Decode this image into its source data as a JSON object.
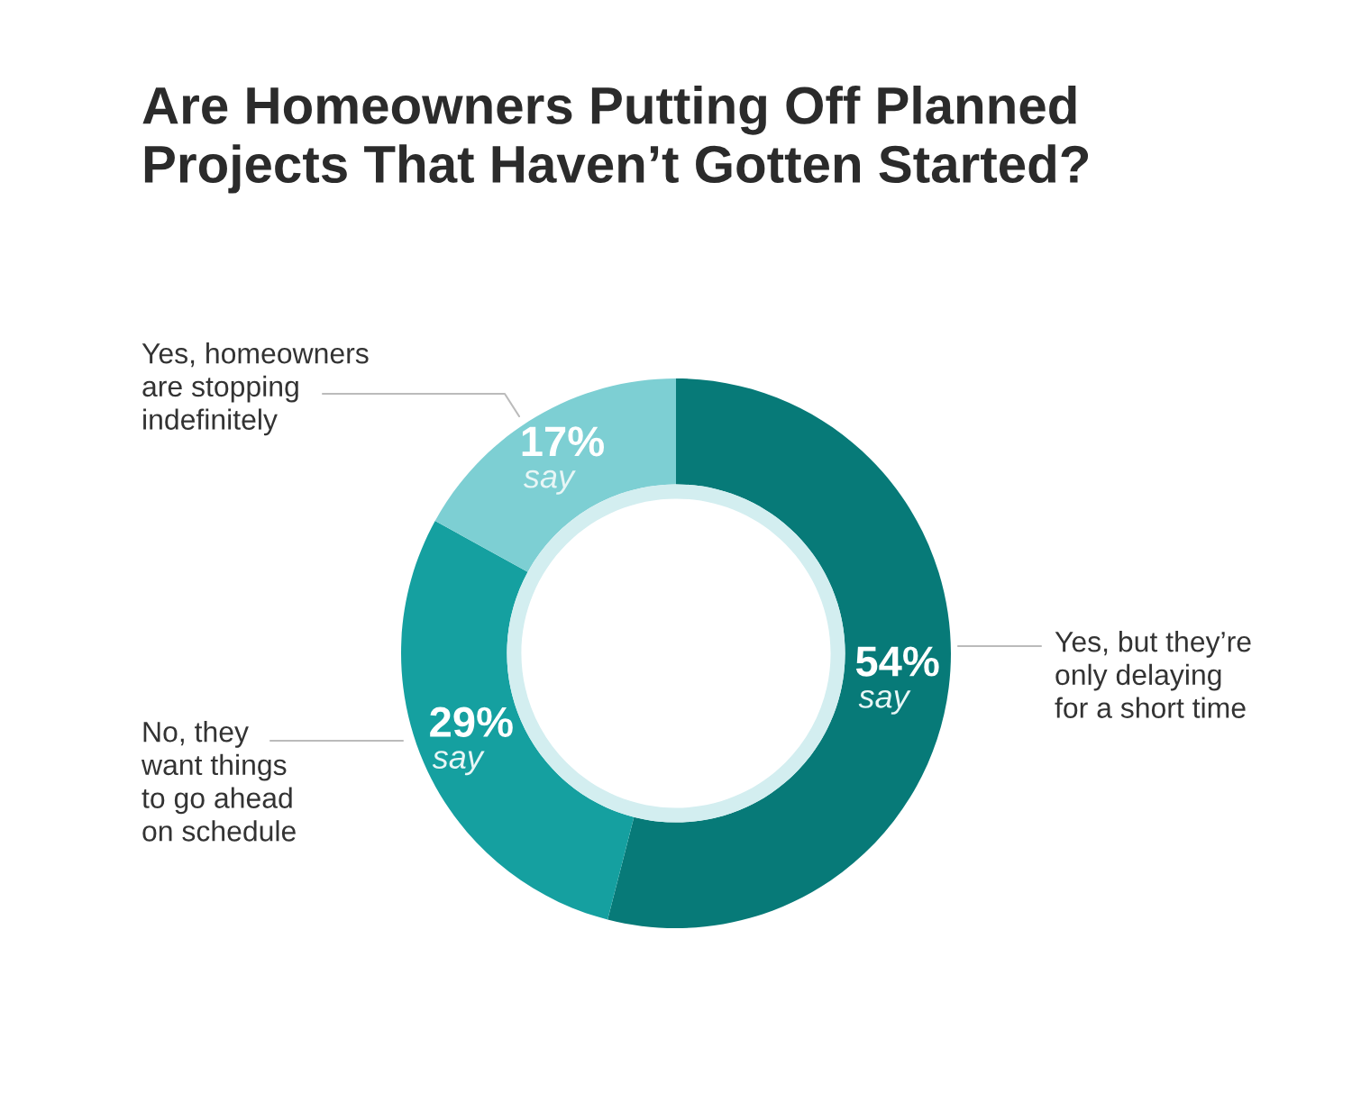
{
  "chart_data": {
    "type": "donut",
    "title": "Are Homeowners Putting Off Planned\nProjects That Haven’t Gotten Started?",
    "categories": [
      "Yes, but they’re\nonly delaying\nfor a short time",
      "No, they\nwant things\nto go ahead\non schedule",
      "Yes, homeowners\nare stopping\nindefinitely"
    ],
    "values": [
      54,
      29,
      17
    ],
    "colors": [
      "#077a78",
      "#15a0a0",
      "#7dcfd3"
    ],
    "value_labels": [
      "54%",
      "29%",
      "17%"
    ],
    "annotations": [
      "say",
      "say",
      "say"
    ]
  }
}
